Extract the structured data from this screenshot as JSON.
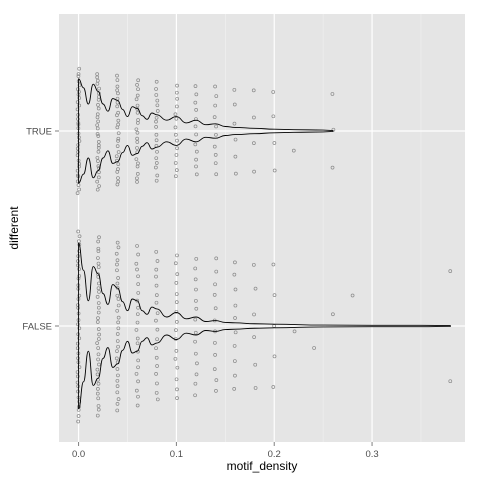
{
  "chart_data": {
    "type": "violin",
    "xlabel": "motif_density",
    "ylabel": "different",
    "categories": [
      "FALSE",
      "TRUE"
    ],
    "xlim": [
      -0.02,
      0.395
    ],
    "x_ticks": [
      0.0,
      0.1,
      0.2,
      0.3
    ],
    "x_tick_labels": [
      "0.0",
      "0.1",
      "0.2",
      "0.3"
    ],
    "grid": true,
    "background": "#e5e5e5",
    "gridline_color": "#ffffff",
    "violin_color": "#000000",
    "point_color": "#8a8a8a",
    "density_shape": {
      "FALSE": {
        "x": [
          0.0,
          0.005,
          0.01,
          0.015,
          0.02,
          0.025,
          0.03,
          0.035,
          0.04,
          0.045,
          0.05,
          0.055,
          0.06,
          0.065,
          0.07,
          0.075,
          0.08,
          0.09,
          0.1,
          0.11,
          0.12,
          0.13,
          0.14,
          0.15,
          0.16,
          0.18,
          0.2,
          0.25,
          0.3,
          0.35,
          0.38
        ],
        "half_width": [
          0.92,
          0.62,
          0.28,
          0.66,
          0.58,
          0.36,
          0.24,
          0.46,
          0.42,
          0.27,
          0.17,
          0.3,
          0.28,
          0.17,
          0.13,
          0.21,
          0.19,
          0.1,
          0.15,
          0.08,
          0.1,
          0.05,
          0.06,
          0.04,
          0.035,
          0.025,
          0.02,
          0.01,
          0.008,
          0.008,
          0.005
        ]
      },
      "TRUE": {
        "x": [
          0.0,
          0.005,
          0.01,
          0.015,
          0.02,
          0.025,
          0.03,
          0.035,
          0.04,
          0.045,
          0.05,
          0.055,
          0.06,
          0.065,
          0.07,
          0.075,
          0.08,
          0.09,
          0.1,
          0.11,
          0.12,
          0.13,
          0.14,
          0.15,
          0.16,
          0.18,
          0.2,
          0.22,
          0.25,
          0.26
        ],
        "half_width": [
          0.58,
          0.48,
          0.3,
          0.52,
          0.44,
          0.3,
          0.22,
          0.36,
          0.34,
          0.24,
          0.16,
          0.27,
          0.25,
          0.17,
          0.13,
          0.2,
          0.18,
          0.12,
          0.16,
          0.09,
          0.12,
          0.07,
          0.08,
          0.05,
          0.04,
          0.03,
          0.02,
          0.015,
          0.01,
          0.005
        ]
      }
    },
    "points": {
      "FALSE": [
        {
          "x": 0.0,
          "n": 40
        },
        {
          "x": 0.02,
          "n": 36
        },
        {
          "x": 0.04,
          "n": 30
        },
        {
          "x": 0.06,
          "n": 22
        },
        {
          "x": 0.08,
          "n": 18
        },
        {
          "x": 0.1,
          "n": 16
        },
        {
          "x": 0.12,
          "n": 14
        },
        {
          "x": 0.14,
          "n": 12
        },
        {
          "x": 0.16,
          "n": 10
        },
        {
          "x": 0.18,
          "n": 6
        },
        {
          "x": 0.2,
          "n": 5
        },
        {
          "x": 0.22,
          "n": 1
        },
        {
          "x": 0.24,
          "n": 1
        },
        {
          "x": 0.26,
          "n": 1
        },
        {
          "x": 0.28,
          "n": 1
        },
        {
          "x": 0.38,
          "n": 2
        }
      ],
      "TRUE": [
        {
          "x": 0.0,
          "n": 34
        },
        {
          "x": 0.02,
          "n": 30
        },
        {
          "x": 0.04,
          "n": 26
        },
        {
          "x": 0.06,
          "n": 22
        },
        {
          "x": 0.08,
          "n": 18
        },
        {
          "x": 0.1,
          "n": 14
        },
        {
          "x": 0.12,
          "n": 12
        },
        {
          "x": 0.14,
          "n": 10
        },
        {
          "x": 0.16,
          "n": 6
        },
        {
          "x": 0.18,
          "n": 4
        },
        {
          "x": 0.2,
          "n": 4
        },
        {
          "x": 0.22,
          "n": 1
        },
        {
          "x": 0.26,
          "n": 3
        }
      ]
    }
  }
}
